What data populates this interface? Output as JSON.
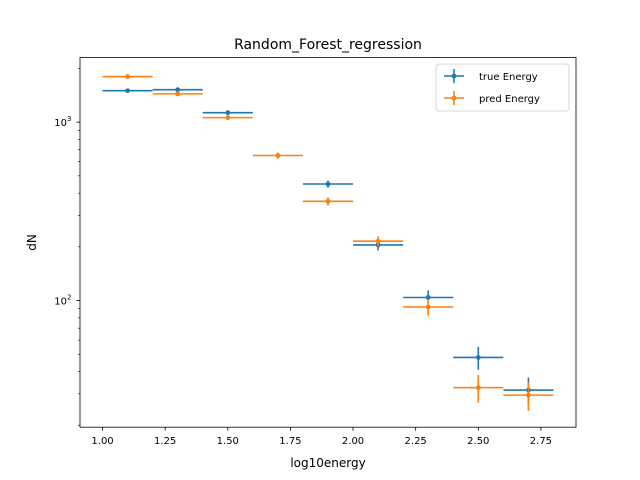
{
  "chart_data": {
    "type": "scatter",
    "title": "Random_Forest_regression",
    "xlabel": "log10energy",
    "ylabel": "dN",
    "x_ticks": [
      1.0,
      1.25,
      1.5,
      1.75,
      2.0,
      2.25,
      2.5,
      2.75
    ],
    "x_tick_labels": [
      "1.00",
      "1.25",
      "1.50",
      "1.75",
      "2.00",
      "2.25",
      "2.50",
      "2.75"
    ],
    "xlim": [
      0.91,
      2.89
    ],
    "y_scale": "log",
    "ylim": [
      19.5,
      2300
    ],
    "y_major_ticks": [
      100,
      1000
    ],
    "y_major_labels": [
      {
        "base": "10",
        "exp": "2"
      },
      {
        "base": "10",
        "exp": "3"
      }
    ],
    "legend_position": "upper right",
    "series": [
      {
        "name": "true Energy",
        "color": "#1f77b4",
        "x": [
          1.1,
          1.3,
          1.5,
          1.9,
          2.1,
          2.3,
          2.5,
          2.7
        ],
        "y": [
          1500,
          1520,
          1130,
          450,
          205,
          104,
          48,
          31.5
        ],
        "x_err": [
          0.1,
          0.1,
          0.1,
          0.1,
          0.1,
          0.1,
          0.1,
          0.1
        ],
        "y_err": [
          38,
          38,
          33,
          21,
          14,
          10,
          7,
          5.5
        ]
      },
      {
        "name": "pred Energy",
        "color": "#ff7f0e",
        "x": [
          1.1,
          1.3,
          1.5,
          1.7,
          1.9,
          2.1,
          2.3,
          2.5,
          2.7
        ],
        "y": [
          1800,
          1440,
          1060,
          650,
          360,
          215,
          92,
          32.5,
          29.5
        ],
        "x_err": [
          0.1,
          0.1,
          0.1,
          0.1,
          0.1,
          0.1,
          0.1,
          0.1,
          0.1
        ],
        "y_err": [
          42,
          37,
          32,
          25,
          19,
          14,
          9.5,
          5.7,
          5.4
        ]
      }
    ]
  }
}
